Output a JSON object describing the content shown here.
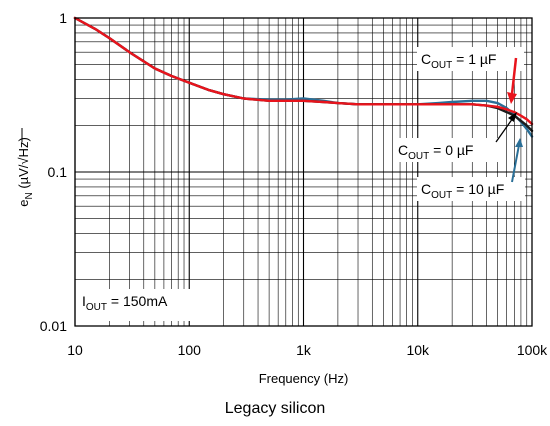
{
  "chart_data": {
    "type": "line",
    "title": "",
    "caption": "Legacy silicon",
    "xlabel": "Frequency (Hz)",
    "ylabel": {
      "main": "e",
      "sub": "N",
      "units": " (µV/√Hz)"
    },
    "x_scale": "log",
    "y_scale": "log",
    "xlim": [
      10,
      100000
    ],
    "ylim": [
      0.01,
      1
    ],
    "grid": true,
    "x_ticks": [
      {
        "value": 10,
        "label": "10"
      },
      {
        "value": 100,
        "label": "100"
      },
      {
        "value": 1000,
        "label": "1k"
      },
      {
        "value": 10000,
        "label": "10k"
      },
      {
        "value": 100000,
        "label": "100k"
      }
    ],
    "y_ticks": [
      {
        "value": 1,
        "label": "1"
      },
      {
        "value": 0.1,
        "label": "0.1"
      },
      {
        "value": 0.01,
        "label": "0.01"
      }
    ],
    "condition": {
      "main": "I",
      "sub": "OUT",
      "rest": " = 150mA"
    },
    "series": [
      {
        "label": {
          "main": "C",
          "sub": "OUT",
          "rest": " = 1 µF"
        },
        "color": "#e8141c",
        "x": [
          10,
          15,
          20,
          30,
          50,
          70,
          100,
          150,
          200,
          300,
          500,
          700,
          1000,
          1500,
          2000,
          3000,
          5000,
          7000,
          10000,
          15000,
          20000,
          30000,
          40000,
          50000,
          60000,
          70000,
          80000,
          90000,
          100000
        ],
        "y": [
          1.0,
          0.85,
          0.74,
          0.6,
          0.47,
          0.42,
          0.38,
          0.34,
          0.32,
          0.3,
          0.29,
          0.29,
          0.29,
          0.285,
          0.28,
          0.275,
          0.275,
          0.275,
          0.275,
          0.275,
          0.275,
          0.275,
          0.27,
          0.265,
          0.255,
          0.245,
          0.232,
          0.22,
          0.205
        ]
      },
      {
        "label": {
          "main": "C",
          "sub": "OUT",
          "rest": " = 0 µF"
        },
        "color": "#1c1c1c",
        "x": [
          10,
          15,
          20,
          30,
          50,
          70,
          100,
          150,
          200,
          300,
          500,
          700,
          1000,
          1500,
          2000,
          3000,
          5000,
          7000,
          10000,
          15000,
          20000,
          30000,
          40000,
          50000,
          60000,
          70000,
          80000,
          90000,
          100000
        ],
        "y": [
          1.0,
          0.85,
          0.74,
          0.6,
          0.47,
          0.42,
          0.38,
          0.34,
          0.32,
          0.3,
          0.29,
          0.29,
          0.29,
          0.285,
          0.28,
          0.275,
          0.275,
          0.275,
          0.275,
          0.275,
          0.275,
          0.275,
          0.27,
          0.26,
          0.245,
          0.232,
          0.215,
          0.2,
          0.185
        ]
      },
      {
        "label": {
          "main": "C",
          "sub": "OUT",
          "rest": " = 10 µF"
        },
        "color": "#2a6f97",
        "x": [
          10,
          15,
          20,
          30,
          50,
          70,
          100,
          150,
          200,
          300,
          500,
          700,
          1000,
          1500,
          2000,
          3000,
          5000,
          7000,
          10000,
          15000,
          20000,
          30000,
          40000,
          50000,
          60000,
          70000,
          80000,
          90000,
          100000
        ],
        "y": [
          1.0,
          0.85,
          0.74,
          0.6,
          0.47,
          0.42,
          0.38,
          0.34,
          0.32,
          0.3,
          0.295,
          0.295,
          0.3,
          0.29,
          0.28,
          0.275,
          0.275,
          0.275,
          0.275,
          0.28,
          0.285,
          0.29,
          0.29,
          0.28,
          0.26,
          0.235,
          0.212,
          0.19,
          0.17
        ]
      }
    ]
  }
}
